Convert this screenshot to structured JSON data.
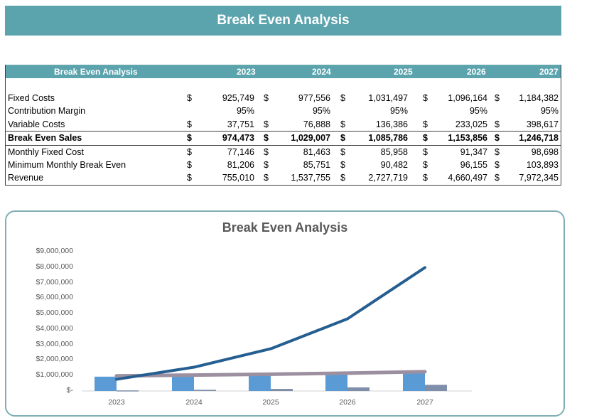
{
  "banner": {
    "title": "Break Even Analysis"
  },
  "table": {
    "header": {
      "label": "Break Even Analysis",
      "years": [
        "2023",
        "2024",
        "2025",
        "2026",
        "2027"
      ]
    },
    "currency_symbol": "$",
    "rows": [
      {
        "label": "Fixed Costs",
        "currency": true,
        "values": [
          "925,749",
          "977,556",
          "1,031,497",
          "1,096,164",
          "1,184,382"
        ]
      },
      {
        "label": "Contribution Margin",
        "currency": false,
        "values": [
          "95%",
          "95%",
          "95%",
          "95%",
          "95%"
        ]
      },
      {
        "label": "Variable Costs",
        "currency": true,
        "values": [
          "37,751",
          "76,888",
          "136,386",
          "233,025",
          "398,617"
        ]
      },
      {
        "label": "Break Even Sales",
        "currency": true,
        "bold": true,
        "values": [
          "974,473",
          "1,029,007",
          "1,085,786",
          "1,153,856",
          "1,246,718"
        ]
      },
      {
        "label": "Monthly Fixed Cost",
        "currency": true,
        "values": [
          "77,146",
          "81,463",
          "85,958",
          "91,347",
          "98,698"
        ]
      },
      {
        "label": "Minimum Monthly Break Even",
        "currency": true,
        "values": [
          "81,206",
          "85,751",
          "90,482",
          "96,155",
          "103,893"
        ]
      },
      {
        "label": "Revenue",
        "currency": true,
        "values": [
          "755,010",
          "1,537,755",
          "2,727,719",
          "4,660,497",
          "7,972,345"
        ]
      }
    ]
  },
  "colors": {
    "header_teal": "#5ba3ad",
    "chart_border": "#7faeb4",
    "bar_fixed_costs": "#5b9bd5",
    "bar_variable_costs": "#7f8fa9",
    "line_revenue": "#255e91",
    "line_break_even": "#9c8fa0"
  },
  "chart_data": {
    "type": "bar",
    "title": "Break Even Analysis",
    "categories": [
      "2023",
      "2024",
      "2025",
      "2026",
      "2027"
    ],
    "y_ticks": [
      "$9,000,000",
      "$8,000,000",
      "$7,000,000",
      "$6,000,000",
      "$5,000,000",
      "$4,000,000",
      "$3,000,000",
      "$2,000,000",
      "$1,000,000",
      "$-"
    ],
    "ylim": [
      0,
      9000000
    ],
    "xlabel": "",
    "ylabel": "",
    "grid": false,
    "legend": "none",
    "series": [
      {
        "name": "Fixed Costs",
        "type": "bar",
        "values": [
          925749,
          977556,
          1031497,
          1096164,
          1184382
        ]
      },
      {
        "name": "Variable Costs",
        "type": "bar",
        "values": [
          37751,
          76888,
          136386,
          233025,
          398617
        ]
      },
      {
        "name": "Break Even Sales",
        "type": "line",
        "values": [
          974473,
          1029007,
          1085786,
          1153856,
          1246718
        ]
      },
      {
        "name": "Revenue",
        "type": "line",
        "values": [
          755010,
          1537755,
          2727719,
          4660497,
          7972345
        ]
      }
    ]
  }
}
